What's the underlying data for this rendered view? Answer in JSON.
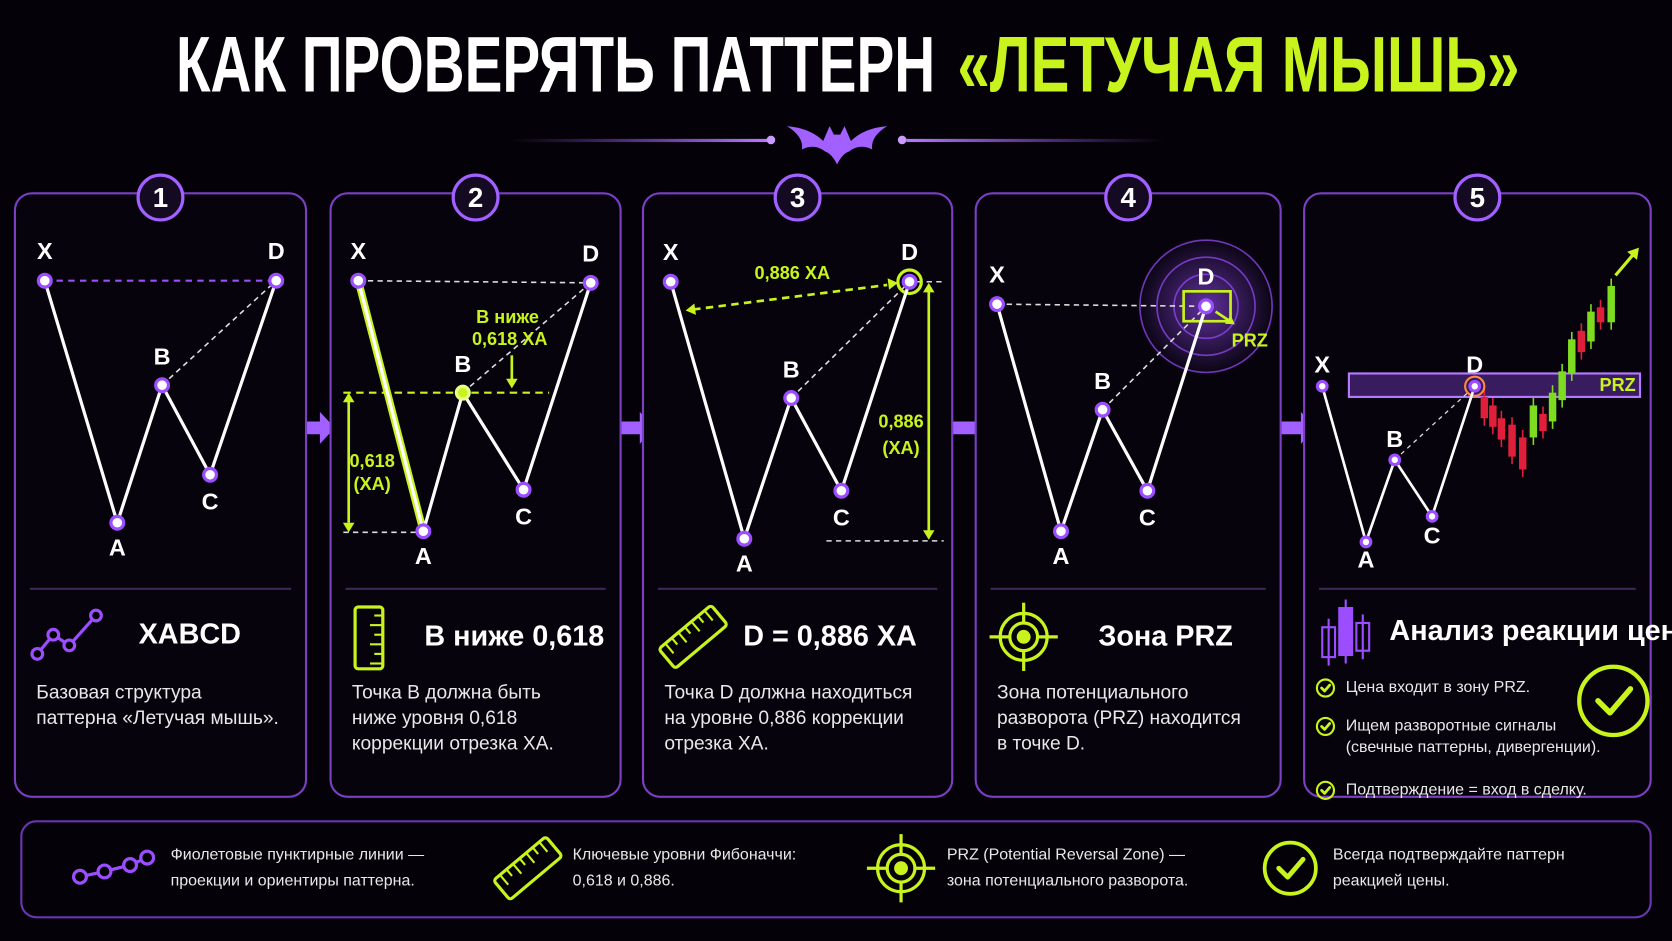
{
  "header": {
    "title": "КАК ПРОВЕРЯТЬ ПАТТЕРН",
    "title_highlight": "«ЛЕТУЧАЯ МЫШЬ»"
  },
  "steps": [
    {
      "number": "1",
      "points": [
        "X",
        "A",
        "B",
        "C",
        "D"
      ],
      "annotations": [],
      "heading": "XABCD",
      "description": [
        "Базовая структура",
        "паттерна «Летучая мышь»."
      ]
    },
    {
      "number": "2",
      "points": [
        "X",
        "A",
        "B",
        "C",
        "D"
      ],
      "annotations": [
        "В ниже",
        "0,618 XA",
        "0,618",
        "(XA)"
      ],
      "heading": "B ниже 0,618",
      "description": [
        "Точка B должна быть",
        "ниже уровня 0,618",
        "коррекции отрезка XA."
      ]
    },
    {
      "number": "3",
      "points": [
        "X",
        "A",
        "B",
        "C",
        "D"
      ],
      "annotations": [
        "0,886 XA",
        "0,886",
        "(XA)"
      ],
      "heading": "D = 0,886 XA",
      "description": [
        "Точка D должна находиться",
        "на уровне 0,886 коррекции",
        "отрезка XA."
      ]
    },
    {
      "number": "4",
      "points": [
        "X",
        "A",
        "B",
        "C",
        "D"
      ],
      "annotations": [
        "PRZ"
      ],
      "heading": "Зона PRZ",
      "description": [
        "Зона потенциального",
        "разворота (PRZ) находится",
        "в точке  D."
      ]
    },
    {
      "number": "5",
      "points": [
        "X",
        "A",
        "B",
        "C",
        "D"
      ],
      "annotations": [
        "PRZ"
      ],
      "heading": "Анализ реакции цены",
      "checklist": [
        [
          "Цена входит в зону PRZ."
        ],
        [
          "Ищем разворотные сигналы",
          "(свечные паттерны, дивергенции)."
        ],
        [
          "Подтверждение = вход в сделку."
        ]
      ]
    }
  ],
  "legend": [
    {
      "lines": [
        "Фиолетовые пунктирные линии —",
        "проекции и ориентиры паттерна."
      ]
    },
    {
      "lines": [
        "Ключевые уровни Фибоначчи:",
        "0,618 и 0,886."
      ]
    },
    {
      "lines": [
        "PRZ (Potential Reversal Zone) —",
        "зона потенциального разворота."
      ]
    },
    {
      "lines": [
        "Всегда подтверждайте паттерн",
        "реакцией цены."
      ]
    }
  ]
}
